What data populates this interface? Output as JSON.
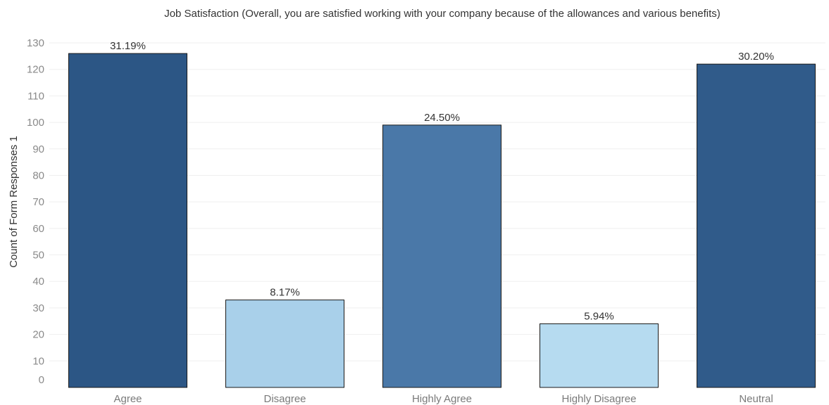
{
  "chart_data": {
    "type": "bar",
    "title": "Job Satisfaction (Overall, you are satisfied working with your company because of the allowances and various benefits)",
    "xlabel": "",
    "ylabel": "Count of Form Responses 1",
    "categories": [
      "Agree",
      "Disagree",
      "Highly Agree",
      "Highly Disagree",
      "Neutral"
    ],
    "values": [
      126,
      33,
      99,
      24,
      122
    ],
    "data_labels": [
      "31.19%",
      "8.17%",
      "24.50%",
      "5.94%",
      "30.20%"
    ],
    "colors": [
      "#2c5685",
      "#a9d0ea",
      "#4a78a8",
      "#b6dbf0",
      "#305b8a"
    ],
    "ylim": [
      0,
      130
    ],
    "yticks": [
      0,
      10,
      20,
      30,
      40,
      50,
      60,
      70,
      80,
      90,
      100,
      110,
      120,
      130
    ],
    "grid": true,
    "legend": "none"
  }
}
